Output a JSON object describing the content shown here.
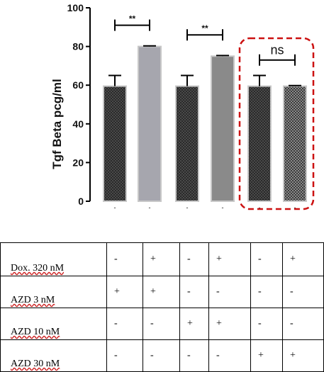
{
  "chart_data": {
    "type": "bar",
    "ylabel": "Tgf Beta pcg/ml",
    "xlabel": "",
    "title": "",
    "ylim": [
      0,
      100
    ],
    "yticks": [
      0,
      20,
      40,
      60,
      80,
      100
    ],
    "ytick_labels": [
      "0",
      "20",
      "40",
      "60",
      "80",
      "100"
    ],
    "grid": false,
    "values": [
      59.5,
      80,
      59.5,
      75,
      59.5,
      59.5
    ],
    "errors": [
      5.5,
      0.3,
      5.5,
      0.3,
      5.5,
      0.3
    ],
    "fill_colors": [
      "#2a2a2a",
      "#a6a6ae",
      "#3a3a3a",
      "#8a8a8a",
      "#2e2e2e",
      "#5a5a5a"
    ],
    "x_tick_labels": [
      "-",
      "-",
      "-",
      "-",
      "-",
      "-"
    ],
    "annotations": [
      {
        "type": "significance",
        "from_bar": 0,
        "to_bar": 1,
        "label": "**",
        "y": 91
      },
      {
        "type": "significance",
        "from_bar": 2,
        "to_bar": 3,
        "label": "**",
        "y": 86
      },
      {
        "type": "significance",
        "from_bar": 4,
        "to_bar": 5,
        "label": "ns",
        "y": 73
      }
    ],
    "highlight": {
      "bars": [
        4,
        5
      ],
      "style": "red dashed rounded box",
      "color": "#cc1111"
    }
  },
  "table": {
    "rows": [
      {
        "label": "Dox. 320 nM",
        "values": [
          "-",
          "+",
          "-",
          "+",
          "-",
          "+"
        ]
      },
      {
        "label": "AZD 3 nM",
        "values": [
          "+",
          "+",
          "-",
          "-",
          "-",
          "-"
        ]
      },
      {
        "label": "AZD 10 nM",
        "values": [
          "-",
          "-",
          "+",
          "+",
          "-",
          "-"
        ]
      },
      {
        "label": "AZD 30 nM",
        "values": [
          "-",
          "-",
          "-",
          "-",
          "+",
          "+"
        ]
      }
    ]
  }
}
